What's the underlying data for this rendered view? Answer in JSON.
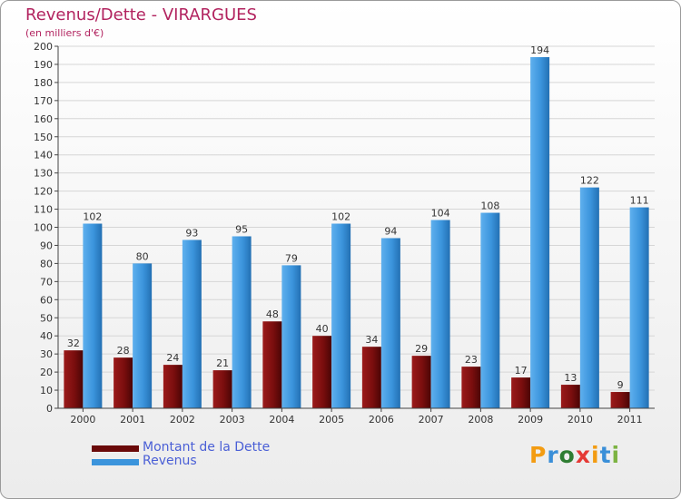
{
  "chart_data": {
    "type": "bar",
    "title": "Revenus/Dette - VIRARGUES",
    "subtitle": "(en milliers d'€)",
    "categories": [
      "2000",
      "2001",
      "2002",
      "2003",
      "2004",
      "2005",
      "2006",
      "2007",
      "2008",
      "2009",
      "2010",
      "2011"
    ],
    "series": [
      {
        "name": "Montant de la Dette",
        "color": "#7a0e0e",
        "values": [
          32,
          28,
          24,
          21,
          48,
          40,
          34,
          29,
          23,
          17,
          13,
          9
        ]
      },
      {
        "name": "Revenus",
        "color": "#3b94dc",
        "values": [
          102,
          80,
          93,
          95,
          79,
          102,
          94,
          104,
          108,
          194,
          122,
          111
        ]
      }
    ],
    "ylim": [
      0,
      200
    ],
    "yticks": [
      0,
      10,
      20,
      30,
      40,
      50,
      60,
      70,
      80,
      90,
      100,
      110,
      120,
      130,
      140,
      150,
      160,
      170,
      180,
      190,
      200
    ],
    "grid": true,
    "legend_position": "bottom-left"
  },
  "legend": [
    {
      "label": "Montant de la Dette",
      "color": "#6a0909"
    },
    {
      "label": "Revenus",
      "color": "#3b94dc"
    }
  ],
  "logo": {
    "text": "Proxiti",
    "letters": [
      {
        "ch": "P",
        "color": "#f39c12"
      },
      {
        "ch": "r",
        "color": "#3a8fd8"
      },
      {
        "ch": "o",
        "color": "#2e7d32"
      },
      {
        "ch": "x",
        "color": "#e53935"
      },
      {
        "ch": "i",
        "color": "#f39c12"
      },
      {
        "ch": "t",
        "color": "#3a8fd8"
      },
      {
        "ch": "i",
        "color": "#7cb342"
      }
    ]
  }
}
